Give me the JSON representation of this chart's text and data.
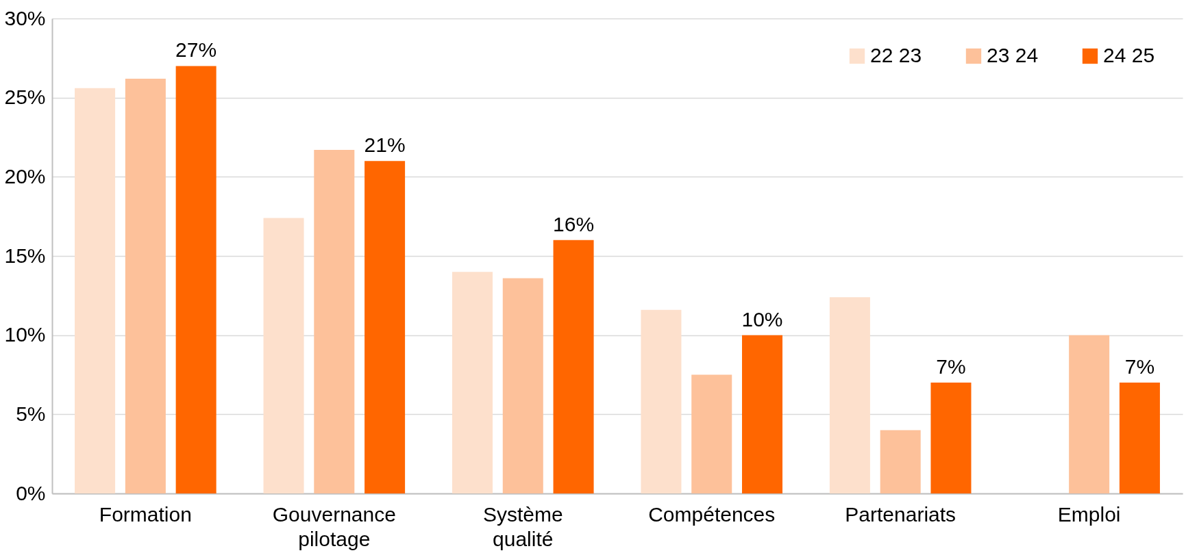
{
  "chart_data": {
    "type": "bar",
    "categories": [
      "Formation",
      "Gouvernance pilotage",
      "Système qualité",
      "Compétences",
      "Partenariats",
      "Emploi"
    ],
    "series": [
      {
        "name": "22 23",
        "color": "#fde0cc",
        "values": [
          25.6,
          17.4,
          14.0,
          11.6,
          12.4,
          null
        ]
      },
      {
        "name": "23 24",
        "color": "#fdc19a",
        "values": [
          26.2,
          21.7,
          13.6,
          7.5,
          4.0,
          10.0
        ]
      },
      {
        "name": "24 25",
        "color": "#ff6600",
        "values": [
          27,
          21,
          16,
          10,
          7,
          7
        ],
        "value_labels": [
          "27%",
          "21%",
          "16%",
          "10%",
          "7%",
          "7%"
        ]
      }
    ],
    "ylim": [
      0,
      30
    ],
    "yticks": [
      {
        "value": 0,
        "label": "0%"
      },
      {
        "value": 5,
        "label": "5%"
      },
      {
        "value": 10,
        "label": "10%"
      },
      {
        "value": 15,
        "label": "15%"
      },
      {
        "value": 20,
        "label": "20%"
      },
      {
        "value": 25,
        "label": "25%"
      },
      {
        "value": 30,
        "label": "30%"
      }
    ],
    "grid": "y",
    "legend": "top right"
  }
}
